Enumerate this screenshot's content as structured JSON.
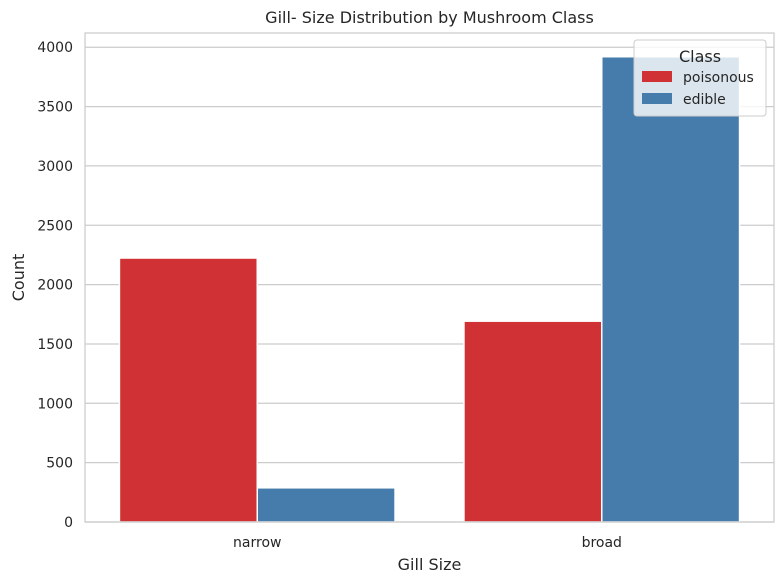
{
  "chart_data": {
    "type": "bar",
    "title": "Gill- Size Distribution by Mushroom Class",
    "xlabel": "Gill Size",
    "ylabel": "Count",
    "categories": [
      "narrow",
      "broad"
    ],
    "series": [
      {
        "name": "poisonous",
        "values": [
          2224,
          1692
        ],
        "color": "#d03134"
      },
      {
        "name": "edible",
        "values": [
          288,
          3920
        ],
        "color": "#467cab"
      }
    ],
    "ylim": [
      0,
      4120
    ],
    "yticks": [
      0,
      500,
      1000,
      1500,
      2000,
      2500,
      3000,
      3500,
      4000
    ],
    "grid": true,
    "legend": {
      "title": "Class",
      "placement": "top-right"
    }
  }
}
